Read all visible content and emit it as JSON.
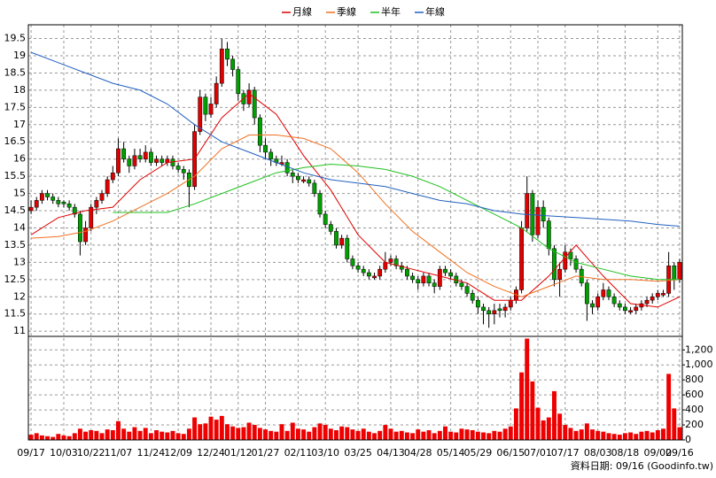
{
  "chart_data": {
    "type": "candlestick",
    "footnote": "資料日期: 09/16 (Goodinfo.tw)",
    "xlim": [
      -0.5,
      119.5
    ],
    "xticks": [
      {
        "value": 0,
        "label": "09/17"
      },
      {
        "value": 6,
        "label": "10/03"
      },
      {
        "value": 11,
        "label": "10/22"
      },
      {
        "value": 16,
        "label": "11/07"
      },
      {
        "value": 22,
        "label": "11/24"
      },
      {
        "value": 27,
        "label": "12/09"
      },
      {
        "value": 33,
        "label": "12/24"
      },
      {
        "value": 38,
        "label": "01/12"
      },
      {
        "value": 43,
        "label": "01/27"
      },
      {
        "value": 49,
        "label": "02/11"
      },
      {
        "value": 54,
        "label": "03/10"
      },
      {
        "value": 60,
        "label": "03/25"
      },
      {
        "value": 66,
        "label": "04/13"
      },
      {
        "value": 71,
        "label": "04/28"
      },
      {
        "value": 77,
        "label": "05/14"
      },
      {
        "value": 82,
        "label": "05/29"
      },
      {
        "value": 88,
        "label": "06/15"
      },
      {
        "value": 93,
        "label": "07/01"
      },
      {
        "value": 98,
        "label": "07/17"
      },
      {
        "value": 104,
        "label": "08/03"
      },
      {
        "value": 109,
        "label": "08/18"
      },
      {
        "value": 115,
        "label": "09/02"
      },
      {
        "value": 119,
        "label": "09/16"
      }
    ],
    "ylim": [
      10.85,
      19.9
    ],
    "yticks": [
      11,
      11.5,
      12,
      12.5,
      13,
      13.5,
      14,
      14.5,
      15,
      15.5,
      16,
      16.5,
      17,
      17.5,
      18,
      18.5,
      19,
      19.5
    ],
    "grid": true,
    "up_color": "#e00000",
    "down_color": "#00a000",
    "ohlc": [
      [
        14.5,
        14.8,
        14.4,
        14.6
      ],
      [
        14.6,
        14.9,
        14.5,
        14.8
      ],
      [
        14.8,
        15.1,
        14.7,
        15.0
      ],
      [
        15.0,
        15.1,
        14.8,
        14.9
      ],
      [
        14.9,
        15.0,
        14.7,
        14.8
      ],
      [
        14.8,
        14.9,
        14.6,
        14.7
      ],
      [
        14.75,
        14.8,
        14.6,
        14.7
      ],
      [
        14.7,
        14.8,
        14.5,
        14.6
      ],
      [
        14.6,
        14.7,
        14.3,
        14.4
      ],
      [
        14.4,
        14.5,
        13.2,
        13.6
      ],
      [
        13.6,
        14.2,
        13.5,
        14.0
      ],
      [
        14.0,
        14.7,
        13.9,
        14.6
      ],
      [
        14.6,
        14.9,
        14.4,
        14.8
      ],
      [
        14.8,
        15.1,
        14.7,
        15.0
      ],
      [
        15.0,
        15.5,
        14.9,
        15.4
      ],
      [
        15.4,
        15.8,
        15.3,
        15.6
      ],
      [
        15.6,
        16.6,
        15.5,
        16.3
      ],
      [
        16.3,
        16.5,
        15.9,
        16.0
      ],
      [
        16.0,
        16.1,
        15.6,
        15.8
      ],
      [
        15.8,
        16.3,
        15.7,
        16.1
      ],
      [
        16.1,
        16.3,
        15.9,
        16.0
      ],
      [
        16.0,
        16.4,
        15.9,
        16.2
      ],
      [
        16.2,
        16.3,
        15.8,
        15.9
      ],
      [
        15.9,
        16.1,
        15.8,
        16.0
      ],
      [
        16.0,
        16.1,
        15.8,
        15.9
      ],
      [
        15.9,
        16.1,
        15.8,
        16.0
      ],
      [
        16.0,
        16.1,
        15.7,
        15.8
      ],
      [
        15.8,
        15.9,
        15.6,
        15.7
      ],
      [
        15.7,
        15.8,
        15.4,
        15.6
      ],
      [
        15.6,
        15.7,
        14.6,
        15.2
      ],
      [
        15.2,
        17.0,
        15.1,
        16.8
      ],
      [
        16.8,
        18.0,
        16.7,
        17.8
      ],
      [
        17.8,
        17.9,
        17.1,
        17.3
      ],
      [
        17.3,
        17.8,
        17.2,
        17.6
      ],
      [
        17.6,
        18.4,
        17.5,
        18.2
      ],
      [
        18.2,
        19.5,
        18.1,
        19.2
      ],
      [
        19.2,
        19.4,
        18.7,
        18.9
      ],
      [
        18.9,
        19.0,
        18.4,
        18.6
      ],
      [
        18.6,
        18.7,
        17.7,
        17.9
      ],
      [
        17.9,
        18.0,
        17.4,
        17.6
      ],
      [
        17.6,
        18.2,
        17.5,
        18.0
      ],
      [
        18.0,
        18.1,
        17.0,
        17.2
      ],
      [
        17.2,
        17.3,
        16.2,
        16.4
      ],
      [
        16.4,
        16.6,
        16.0,
        16.2
      ],
      [
        16.2,
        16.3,
        15.8,
        16.0
      ],
      [
        16.0,
        16.1,
        15.8,
        15.9
      ],
      [
        15.85,
        16.1,
        15.8,
        15.9
      ],
      [
        15.9,
        16.0,
        15.5,
        15.6
      ],
      [
        15.6,
        15.7,
        15.3,
        15.5
      ],
      [
        15.5,
        15.6,
        15.3,
        15.4
      ],
      [
        15.35,
        15.5,
        15.3,
        15.4
      ],
      [
        15.4,
        15.5,
        15.2,
        15.3
      ],
      [
        15.3,
        15.4,
        14.9,
        15.0
      ],
      [
        15.0,
        15.1,
        14.3,
        14.4
      ],
      [
        14.4,
        14.5,
        14.0,
        14.1
      ],
      [
        14.1,
        14.2,
        13.8,
        13.9
      ],
      [
        13.9,
        14.0,
        13.4,
        13.5
      ],
      [
        13.5,
        13.8,
        13.4,
        13.7
      ],
      [
        13.7,
        13.8,
        13.0,
        13.1
      ],
      [
        13.1,
        13.2,
        12.8,
        12.9
      ],
      [
        12.9,
        13.0,
        12.7,
        12.8
      ],
      [
        12.8,
        12.9,
        12.6,
        12.7
      ],
      [
        12.7,
        12.8,
        12.5,
        12.6
      ],
      [
        12.55,
        12.7,
        12.5,
        12.6
      ],
      [
        12.6,
        12.9,
        12.5,
        12.8
      ],
      [
        12.8,
        13.3,
        12.7,
        13.0
      ],
      [
        13.0,
        13.2,
        12.9,
        13.1
      ],
      [
        13.1,
        13.2,
        12.8,
        12.9
      ],
      [
        12.9,
        13.0,
        12.7,
        12.8
      ],
      [
        12.8,
        12.9,
        12.5,
        12.6
      ],
      [
        12.6,
        12.7,
        12.4,
        12.5
      ],
      [
        12.5,
        12.6,
        12.2,
        12.4
      ],
      [
        12.4,
        12.7,
        12.3,
        12.6
      ],
      [
        12.6,
        12.7,
        12.3,
        12.4
      ],
      [
        12.4,
        12.5,
        12.1,
        12.3
      ],
      [
        12.3,
        12.9,
        12.2,
        12.8
      ],
      [
        12.8,
        12.9,
        12.6,
        12.7
      ],
      [
        12.7,
        12.8,
        12.5,
        12.6
      ],
      [
        12.6,
        12.7,
        12.3,
        12.4
      ],
      [
        12.4,
        12.5,
        12.2,
        12.3
      ],
      [
        12.3,
        12.4,
        12.0,
        12.1
      ],
      [
        12.1,
        12.2,
        11.8,
        11.9
      ],
      [
        11.9,
        12.0,
        11.5,
        11.7
      ],
      [
        11.7,
        11.8,
        11.2,
        11.6
      ],
      [
        11.6,
        11.7,
        11.1,
        11.5
      ],
      [
        11.5,
        11.8,
        11.2,
        11.6
      ],
      [
        11.65,
        11.8,
        11.4,
        11.6
      ],
      [
        11.6,
        11.8,
        11.4,
        11.7
      ],
      [
        11.7,
        12.0,
        11.6,
        11.9
      ],
      [
        11.9,
        12.3,
        11.8,
        12.2
      ],
      [
        12.2,
        14.2,
        12.1,
        14.0
      ],
      [
        14.0,
        15.5,
        13.9,
        15.0
      ],
      [
        15.0,
        15.1,
        13.6,
        13.8
      ],
      [
        13.8,
        14.8,
        13.7,
        14.6
      ],
      [
        14.6,
        14.8,
        14.0,
        14.2
      ],
      [
        14.2,
        14.3,
        13.2,
        13.4
      ],
      [
        13.4,
        13.5,
        12.3,
        12.5
      ],
      [
        12.5,
        13.0,
        12.0,
        12.8
      ],
      [
        12.8,
        13.5,
        12.7,
        13.3
      ],
      [
        13.3,
        13.4,
        12.9,
        13.1
      ],
      [
        13.1,
        13.2,
        12.7,
        12.8
      ],
      [
        12.8,
        12.9,
        12.3,
        12.4
      ],
      [
        12.4,
        12.5,
        11.3,
        11.8
      ],
      [
        11.8,
        11.9,
        11.5,
        11.7
      ],
      [
        11.7,
        12.1,
        11.6,
        12.0
      ],
      [
        12.0,
        12.4,
        11.9,
        12.2
      ],
      [
        12.2,
        12.3,
        11.9,
        12.0
      ],
      [
        12.0,
        12.1,
        11.7,
        11.8
      ],
      [
        11.8,
        11.9,
        11.6,
        11.7
      ],
      [
        11.7,
        11.8,
        11.5,
        11.6
      ],
      [
        11.55,
        11.7,
        11.5,
        11.6
      ],
      [
        11.6,
        11.8,
        11.5,
        11.7
      ],
      [
        11.7,
        11.9,
        11.6,
        11.8
      ],
      [
        11.8,
        12.0,
        11.7,
        11.9
      ],
      [
        11.9,
        12.1,
        11.8,
        12.0
      ],
      [
        12.0,
        12.2,
        11.9,
        12.1
      ],
      [
        12.05,
        12.2,
        12.0,
        12.1
      ],
      [
        12.1,
        13.3,
        12.0,
        12.9
      ],
      [
        12.9,
        13.0,
        12.2,
        12.5
      ],
      [
        12.5,
        13.1,
        12.4,
        13.0
      ]
    ],
    "series": [
      {
        "name": "月線",
        "color": "#e00000",
        "x": [
          0,
          5,
          10,
          15,
          20,
          25,
          30,
          35,
          40,
          45,
          50,
          55,
          60,
          65,
          70,
          75,
          80,
          85,
          90,
          95,
          100,
          105,
          110,
          115,
          119
        ],
        "values": [
          13.8,
          14.3,
          14.5,
          14.6,
          15.4,
          15.9,
          16.0,
          17.2,
          17.9,
          17.3,
          16.1,
          15.1,
          13.8,
          13.0,
          12.8,
          12.6,
          12.4,
          11.9,
          11.9,
          12.6,
          13.5,
          12.6,
          11.8,
          11.7,
          12.0
        ]
      },
      {
        "name": "季線",
        "color": "#f07020",
        "x": [
          0,
          5,
          10,
          15,
          20,
          25,
          30,
          35,
          40,
          45,
          50,
          55,
          60,
          65,
          70,
          75,
          80,
          85,
          90,
          95,
          100,
          105,
          110,
          115,
          119
        ],
        "values": [
          13.7,
          13.75,
          13.9,
          14.2,
          14.6,
          15.0,
          15.5,
          16.3,
          16.7,
          16.7,
          16.6,
          16.3,
          15.6,
          14.7,
          13.9,
          13.3,
          12.7,
          12.3,
          12.0,
          12.3,
          12.6,
          12.5,
          12.5,
          12.45,
          12.5
        ]
      },
      {
        "name": "半年",
        "color": "#20c020",
        "x": [
          0,
          5,
          10,
          15,
          20,
          25,
          30,
          35,
          40,
          45,
          50,
          55,
          60,
          65,
          70,
          75,
          80,
          85,
          90,
          95,
          100,
          105,
          110,
          115,
          119
        ],
        "values": [
          null,
          null,
          null,
          14.45,
          14.45,
          14.45,
          14.7,
          15.0,
          15.3,
          15.6,
          15.75,
          15.85,
          15.8,
          15.7,
          15.5,
          15.2,
          14.8,
          14.4,
          14.0,
          13.4,
          13.0,
          12.8,
          12.6,
          12.5,
          12.5
        ]
      },
      {
        "name": "年線",
        "color": "#2060c0",
        "x": [
          0,
          5,
          10,
          15,
          20,
          25,
          30,
          35,
          40,
          45,
          50,
          55,
          60,
          65,
          70,
          75,
          80,
          85,
          90,
          95,
          100,
          105,
          110,
          115,
          119
        ],
        "values": [
          19.1,
          18.8,
          18.5,
          18.2,
          18.0,
          17.6,
          17.0,
          16.5,
          16.2,
          15.9,
          15.6,
          15.4,
          15.3,
          15.2,
          15.0,
          14.8,
          14.7,
          14.5,
          14.4,
          14.35,
          14.3,
          14.25,
          14.2,
          14.1,
          14.05
        ]
      }
    ],
    "volume": {
      "color": "#ee0000",
      "ylim": [
        0,
        1380
      ],
      "yticks": [
        0,
        200,
        400,
        600,
        800,
        {
          "value": 1000,
          "label": "1,000"
        },
        {
          "value": 1200,
          "label": "1,200"
        }
      ],
      "values": [
        70,
        90,
        60,
        50,
        40,
        80,
        60,
        50,
        90,
        150,
        110,
        130,
        120,
        90,
        140,
        130,
        250,
        150,
        110,
        170,
        120,
        160,
        90,
        130,
        110,
        100,
        120,
        90,
        80,
        150,
        300,
        210,
        220,
        310,
        270,
        320,
        210,
        180,
        160,
        170,
        230,
        200,
        160,
        140,
        120,
        110,
        210,
        120,
        230,
        150,
        140,
        110,
        170,
        220,
        200,
        150,
        130,
        180,
        170,
        140,
        120,
        150,
        110,
        90,
        120,
        200,
        150,
        110,
        120,
        100,
        90,
        140,
        110,
        130,
        90,
        120,
        180,
        110,
        100,
        150,
        140,
        130,
        110,
        100,
        90,
        120,
        110,
        150,
        180,
        420,
        900,
        1350,
        780,
        430,
        260,
        300,
        650,
        350,
        200,
        160,
        120,
        140,
        220,
        140,
        120,
        110,
        90,
        80,
        70,
        90,
        100,
        80,
        110,
        120,
        100,
        130,
        150,
        880,
        420,
        170
      ]
    }
  }
}
